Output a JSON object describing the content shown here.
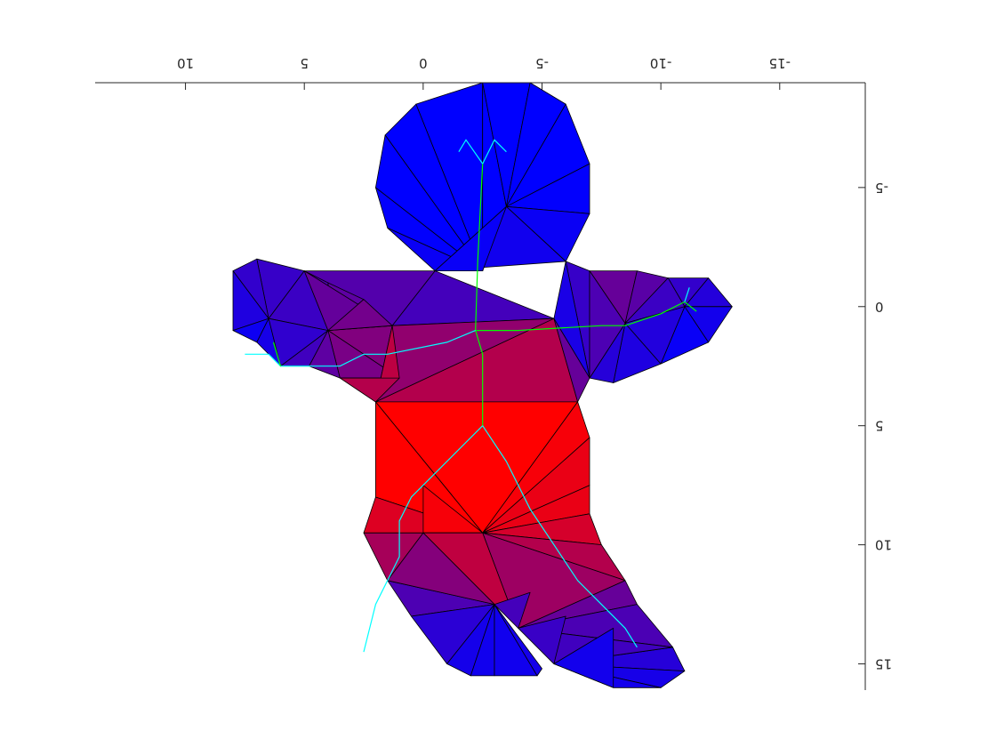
{
  "chart_data": {
    "type": "triangle-mesh",
    "title": "",
    "xlabel": "",
    "ylabel": "",
    "x_axis": {
      "location": "top",
      "direction": "reversed",
      "lim": [
        -18.6,
        13.8
      ],
      "ticks": [
        10,
        5,
        0,
        -5,
        -10,
        -15
      ],
      "tick_labels": [
        "10",
        "5",
        "0",
        "-5",
        "-10",
        "-15"
      ]
    },
    "y_axis": {
      "location": "right",
      "direction": "reversed",
      "lim": [
        -9.4,
        16.1
      ],
      "ticks": [
        -5,
        0,
        5,
        10,
        15
      ],
      "tick_labels": [
        "-5",
        "0",
        "5",
        "10",
        "15"
      ]
    },
    "grid": false,
    "box": false,
    "image_rotated_180": true,
    "colors": {
      "hot": "#ff0000",
      "cold": "#0000ff",
      "edge": "#000000",
      "skeleton": [
        "#00ff00",
        "#00ffff"
      ],
      "axes": "#262626"
    },
    "vertices": [
      [
        -2.5,
        -9.4
      ],
      [
        0.3,
        -8.5
      ],
      [
        1.6,
        -7.2
      ],
      [
        2.0,
        -5.0
      ],
      [
        1.5,
        -3.3
      ],
      [
        -0.5,
        -1.5
      ],
      [
        -6.0,
        -1.9
      ],
      [
        -7.0,
        -3.9
      ],
      [
        -7.0,
        -6.0
      ],
      [
        -6.0,
        -8.5
      ],
      [
        -4.5,
        -9.4
      ],
      [
        -2.5,
        -1.5
      ],
      [
        -3.5,
        -4.2
      ],
      [
        -7.0,
        -1.5
      ],
      [
        -9.0,
        -1.5
      ],
      [
        -10.3,
        -1.2
      ],
      [
        -12.0,
        -1.2
      ],
      [
        -13.0,
        0.0
      ],
      [
        -12.0,
        1.5
      ],
      [
        -10.0,
        2.4
      ],
      [
        -8.0,
        3.2
      ],
      [
        -7.0,
        3.0
      ],
      [
        -5.5,
        0.5
      ],
      [
        -8.5,
        0.7
      ],
      [
        -11.0,
        0.0
      ],
      [
        1.3,
        0.8
      ],
      [
        1.0,
        3.0
      ],
      [
        2.5,
        -0.3
      ],
      [
        4.0,
        -1.0
      ],
      [
        5.0,
        -1.5
      ],
      [
        7.0,
        -2.0
      ],
      [
        8.0,
        -1.5
      ],
      [
        8.0,
        1.0
      ],
      [
        7.0,
        1.5
      ],
      [
        6.0,
        2.5
      ],
      [
        4.8,
        2.5
      ],
      [
        3.5,
        3.0
      ],
      [
        4.0,
        1.0
      ],
      [
        6.5,
        0.5
      ],
      [
        2.0,
        4.0
      ],
      [
        -6.5,
        4.0
      ],
      [
        -7.0,
        5.5
      ],
      [
        -7.0,
        7.5
      ],
      [
        -7.0,
        8.7
      ],
      [
        -7.5,
        10.0
      ],
      [
        -8.5,
        11.5
      ],
      [
        -9.0,
        12.5
      ],
      [
        -10.5,
        14.3
      ],
      [
        -11.0,
        15.3
      ],
      [
        -10.0,
        16.0
      ],
      [
        -8.0,
        16.0
      ],
      [
        -5.5,
        15.0
      ],
      [
        -4.0,
        13.5
      ],
      [
        -2.5,
        9.5
      ],
      [
        2.0,
        8.0
      ],
      [
        2.5,
        9.5
      ],
      [
        1.5,
        11.5
      ],
      [
        0.5,
        13.0
      ],
      [
        -1.0,
        15.0
      ],
      [
        -2.0,
        15.5
      ],
      [
        -3.0,
        15.5
      ],
      [
        -4.8,
        15.5
      ],
      [
        -5.0,
        15.2
      ],
      [
        -3.0,
        12.5
      ],
      [
        0.0,
        9.5
      ],
      [
        0.0,
        7.5
      ],
      [
        -4.5,
        12.0
      ],
      [
        -6.0,
        13.0
      ],
      [
        -8.0,
        13.5
      ]
    ],
    "triangles": [
      [
        0,
        1,
        11
      ],
      [
        1,
        2,
        11
      ],
      [
        2,
        3,
        11
      ],
      [
        3,
        4,
        11
      ],
      [
        4,
        5,
        11
      ],
      [
        0,
        11,
        12
      ],
      [
        0,
        12,
        10
      ],
      [
        10,
        12,
        9
      ],
      [
        9,
        12,
        8
      ],
      [
        8,
        12,
        7
      ],
      [
        7,
        12,
        6
      ],
      [
        6,
        12,
        5
      ],
      [
        5,
        12,
        11
      ],
      [
        6,
        13,
        21
      ],
      [
        13,
        14,
        23
      ],
      [
        14,
        15,
        23
      ],
      [
        15,
        16,
        24
      ],
      [
        16,
        17,
        24
      ],
      [
        17,
        18,
        24
      ],
      [
        18,
        19,
        24
      ],
      [
        19,
        20,
        23
      ],
      [
        20,
        21,
        23
      ],
      [
        21,
        22,
        6
      ],
      [
        13,
        21,
        23
      ],
      [
        15,
        24,
        23
      ],
      [
        19,
        23,
        24
      ],
      [
        5,
        25,
        29
      ],
      [
        25,
        26,
        37
      ],
      [
        26,
        36,
        37
      ],
      [
        27,
        28,
        37
      ],
      [
        28,
        29,
        37
      ],
      [
        29,
        30,
        38
      ],
      [
        30,
        31,
        38
      ],
      [
        31,
        32,
        38
      ],
      [
        32,
        33,
        38
      ],
      [
        33,
        34,
        38
      ],
      [
        34,
        35,
        37
      ],
      [
        35,
        36,
        37
      ],
      [
        29,
        38,
        37
      ],
      [
        34,
        37,
        38
      ],
      [
        25,
        29,
        37
      ],
      [
        26,
        36,
        39
      ],
      [
        27,
        25,
        37
      ],
      [
        5,
        22,
        25
      ],
      [
        22,
        40,
        39
      ],
      [
        22,
        39,
        25
      ],
      [
        25,
        39,
        26
      ],
      [
        22,
        21,
        40
      ],
      [
        36,
        39,
        26
      ],
      [
        39,
        40,
        53
      ],
      [
        40,
        41,
        53
      ],
      [
        41,
        42,
        53
      ],
      [
        42,
        43,
        53
      ],
      [
        43,
        44,
        53
      ],
      [
        44,
        45,
        53
      ],
      [
        45,
        46,
        52
      ],
      [
        46,
        47,
        52
      ],
      [
        47,
        48,
        51
      ],
      [
        48,
        49,
        51
      ],
      [
        49,
        50,
        51
      ],
      [
        47,
        51,
        52
      ],
      [
        45,
        52,
        53
      ],
      [
        39,
        54,
        53
      ],
      [
        53,
        55,
        64
      ],
      [
        55,
        56,
        64
      ],
      [
        56,
        57,
        63
      ],
      [
        57,
        58,
        63
      ],
      [
        58,
        59,
        63
      ],
      [
        59,
        60,
        63
      ],
      [
        60,
        61,
        63
      ],
      [
        61,
        62,
        63
      ],
      [
        54,
        55,
        53
      ],
      [
        64,
        65,
        53
      ],
      [
        53,
        52,
        64
      ],
      [
        56,
        63,
        64
      ],
      [
        52,
        66,
        63
      ],
      [
        52,
        51,
        67
      ],
      [
        51,
        50,
        68
      ]
    ],
    "vertex_values": [
      0.0,
      0.0,
      0.0,
      0.0,
      0.02,
      0.1,
      0.1,
      0.02,
      0.0,
      0.0,
      0.0,
      0.0,
      0.0,
      0.45,
      0.4,
      0.3,
      0.25,
      0.12,
      0.05,
      0.0,
      0.0,
      0.1,
      0.1,
      0.35,
      0.05,
      0.6,
      0.62,
      0.45,
      0.35,
      0.28,
      0.25,
      0.22,
      0.03,
      0.0,
      0.15,
      0.3,
      0.5,
      0.3,
      0.12,
      1.0,
      1.0,
      0.9,
      0.85,
      0.9,
      0.6,
      0.5,
      0.35,
      0.18,
      0.05,
      0.0,
      0.0,
      0.22,
      0.35,
      1.0,
      1.0,
      0.6,
      0.45,
      0.25,
      0.05,
      0.0,
      0.0,
      0.0,
      0.05,
      0.2,
      0.9,
      1.0,
      0.25,
      0.1,
      0.0
    ],
    "skeleton_edges": [
      [
        [
          -2.5,
          -6.0
        ],
        [
          -2.3,
          -2.0
        ],
        [
          -2.2,
          1.0
        ],
        [
          -2.5,
          2.0
        ],
        [
          -2.5,
          5.0
        ]
      ],
      [
        [
          -2.5,
          -6.0
        ],
        [
          -1.8,
          -7.0
        ],
        [
          -1.5,
          -6.5
        ]
      ],
      [
        [
          -2.5,
          -6.0
        ],
        [
          -3.0,
          -7.0
        ],
        [
          -3.5,
          -6.5
        ]
      ],
      [
        [
          -2.2,
          1.0
        ],
        [
          -4.0,
          1.0
        ],
        [
          -7.5,
          0.8
        ],
        [
          -8.5,
          0.8
        ],
        [
          -10.0,
          0.3
        ],
        [
          -11.0,
          -0.2
        ],
        [
          -11.5,
          0.2
        ]
      ],
      [
        [
          -11.0,
          -0.2
        ],
        [
          -11.2,
          -0.8
        ]
      ],
      [
        [
          -2.2,
          1.0
        ],
        [
          -1.0,
          1.5
        ],
        [
          1.5,
          2.0
        ],
        [
          2.5,
          2.0
        ],
        [
          3.5,
          2.5
        ],
        [
          6.0,
          2.5
        ],
        [
          6.5,
          2.0
        ],
        [
          7.5,
          2.0
        ]
      ],
      [
        [
          6.0,
          2.5
        ],
        [
          6.3,
          1.5
        ]
      ],
      [
        [
          -2.5,
          5.0
        ],
        [
          -1.5,
          6.0
        ],
        [
          0.5,
          8.0
        ],
        [
          1.0,
          9.0
        ],
        [
          1.0,
          10.5
        ],
        [
          2.0,
          12.5
        ],
        [
          2.5,
          14.5
        ]
      ],
      [
        [
          -2.5,
          5.0
        ],
        [
          -3.5,
          6.5
        ],
        [
          -4.5,
          8.5
        ],
        [
          -5.5,
          10.0
        ],
        [
          -6.5,
          11.5
        ],
        [
          -7.5,
          12.5
        ],
        [
          -8.5,
          13.5
        ],
        [
          -9.0,
          14.3
        ]
      ]
    ]
  }
}
